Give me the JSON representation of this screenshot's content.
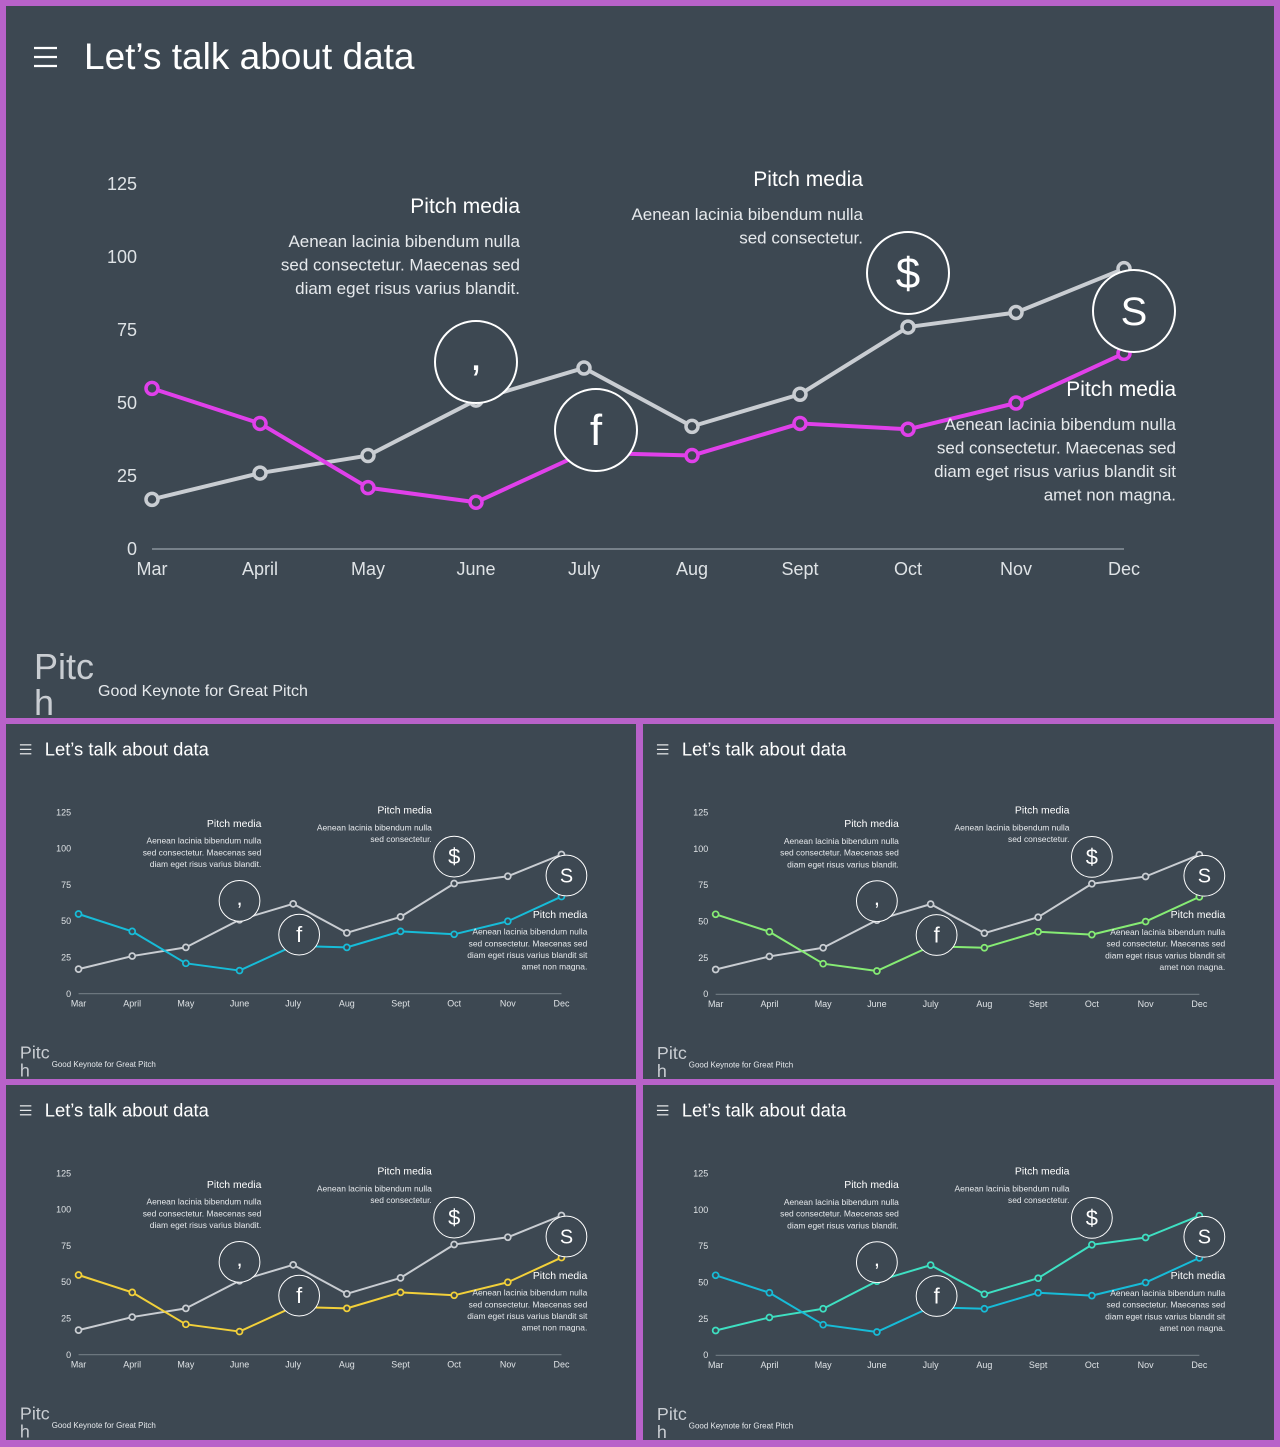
{
  "title": "Let’s talk about data",
  "footer": {
    "brand_line1": "Pitc",
    "brand_line2": "h",
    "tagline": "Good Keynote for Great Pitch"
  },
  "icons": {
    "menu": "hamburger-menu-icon",
    "comma": "comma-icon",
    "facebook": "facebook-icon",
    "dollar": "dollar-icon",
    "skype": "skype-icon"
  },
  "annotations": [
    {
      "heading": "Pitch media",
      "lines": [
        "Aenean lacinia bibendum nulla",
        "sed consectetur. Maecenas sed",
        "diam eget risus varius blandit."
      ]
    },
    {
      "heading": "Pitch media",
      "lines": [
        "Aenean lacinia bibendum nulla",
        "sed consectetur."
      ]
    },
    {
      "heading": "Pitch media",
      "lines": [
        "Aenean lacinia bibendum nulla",
        "sed consectetur. Maecenas sed",
        "diam eget risus varius blandit sit",
        "amet non magna."
      ]
    }
  ],
  "chart_data": [
    {
      "type": "line",
      "categories": [
        "Mar",
        "April",
        "May",
        "June",
        "July",
        "Aug",
        "Sept",
        "Oct",
        "Nov",
        "Dec"
      ],
      "yticks": [
        0,
        25,
        50,
        75,
        100,
        125
      ],
      "ylim": [
        0,
        125
      ],
      "grid": false,
      "series": [
        {
          "color": "#c9cdd2",
          "values": [
            17,
            26,
            32,
            51,
            62,
            42,
            53,
            76,
            81,
            96
          ]
        },
        {
          "color": "#e040ea",
          "values": [
            55,
            43,
            21,
            16,
            33,
            32,
            43,
            41,
            50,
            67
          ]
        }
      ]
    },
    {
      "type": "line",
      "categories": [
        "Mar",
        "April",
        "May",
        "June",
        "July",
        "Aug",
        "Sept",
        "Oct",
        "Nov",
        "Dec"
      ],
      "yticks": [
        0,
        25,
        50,
        75,
        100,
        125
      ],
      "ylim": [
        0,
        125
      ],
      "grid": false,
      "series": [
        {
          "color": "#c9cdd2",
          "values": [
            17,
            26,
            32,
            51,
            62,
            42,
            53,
            76,
            81,
            96
          ]
        },
        {
          "color": "#17bcd8",
          "values": [
            55,
            43,
            21,
            16,
            33,
            32,
            43,
            41,
            50,
            67
          ]
        }
      ]
    },
    {
      "type": "line",
      "categories": [
        "Mar",
        "April",
        "May",
        "June",
        "July",
        "Aug",
        "Sept",
        "Oct",
        "Nov",
        "Dec"
      ],
      "yticks": [
        0,
        25,
        50,
        75,
        100,
        125
      ],
      "ylim": [
        0,
        125
      ],
      "grid": false,
      "series": [
        {
          "color": "#c9cdd2",
          "values": [
            17,
            26,
            32,
            51,
            62,
            42,
            53,
            76,
            81,
            96
          ]
        },
        {
          "color": "#86ec74",
          "values": [
            55,
            43,
            21,
            16,
            33,
            32,
            43,
            41,
            50,
            67
          ]
        }
      ]
    },
    {
      "type": "line",
      "categories": [
        "Mar",
        "April",
        "May",
        "June",
        "July",
        "Aug",
        "Sept",
        "Oct",
        "Nov",
        "Dec"
      ],
      "yticks": [
        0,
        25,
        50,
        75,
        100,
        125
      ],
      "ylim": [
        0,
        125
      ],
      "grid": false,
      "series": [
        {
          "color": "#c9cdd2",
          "values": [
            17,
            26,
            32,
            51,
            62,
            42,
            53,
            76,
            81,
            96
          ]
        },
        {
          "color": "#f2d03a",
          "values": [
            55,
            43,
            21,
            16,
            33,
            32,
            43,
            41,
            50,
            67
          ]
        }
      ]
    },
    {
      "type": "line",
      "categories": [
        "Mar",
        "April",
        "May",
        "June",
        "July",
        "Aug",
        "Sept",
        "Oct",
        "Nov",
        "Dec"
      ],
      "yticks": [
        0,
        25,
        50,
        75,
        100,
        125
      ],
      "ylim": [
        0,
        125
      ],
      "grid": false,
      "series": [
        {
          "color": "#3ee0c2",
          "values": [
            17,
            26,
            32,
            51,
            62,
            42,
            53,
            76,
            81,
            96
          ]
        },
        {
          "color": "#17bcd8",
          "values": [
            55,
            43,
            21,
            16,
            33,
            32,
            43,
            41,
            50,
            67
          ]
        }
      ]
    }
  ]
}
